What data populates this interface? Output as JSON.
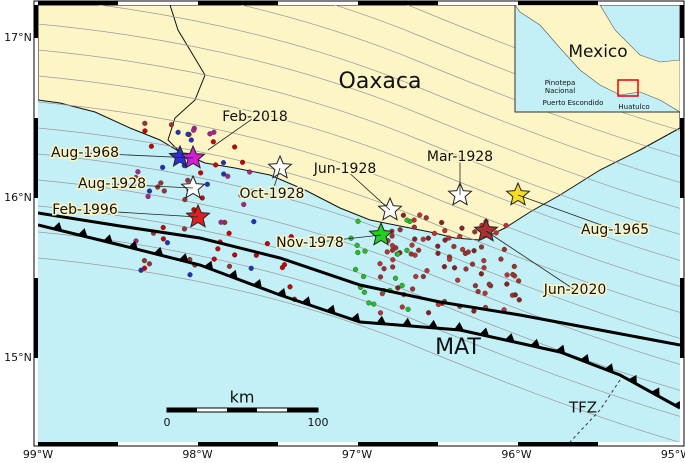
{
  "map": {
    "region_label": "Oaxaca",
    "lat_labels": [
      "17°N",
      "16°N",
      "15°N"
    ],
    "lon_labels": [
      "99°W",
      "98°W",
      "97°W",
      "96°W",
      "95°W"
    ],
    "events": [
      {
        "label": "Feb-2018"
      },
      {
        "label": "Aug-1968"
      },
      {
        "label": "Aug-1928"
      },
      {
        "label": "Feb-1996"
      },
      {
        "label": "Oct-1928"
      },
      {
        "label": "Jun-1928"
      },
      {
        "label": "Nov-1978"
      },
      {
        "label": "Mar-1928"
      },
      {
        "label": "Aug-1965"
      },
      {
        "label": "Jun-2020"
      }
    ],
    "trench_label": "MAT",
    "fracture_zone_label": "TFZ",
    "scale_bar": {
      "unit": "km",
      "ticks": [
        "0",
        "100"
      ]
    },
    "inset": {
      "country": "Mexico",
      "places": [
        "Pinotepa",
        "Nacional",
        "Puerto Escondido",
        "Huatulco"
      ]
    }
  }
}
